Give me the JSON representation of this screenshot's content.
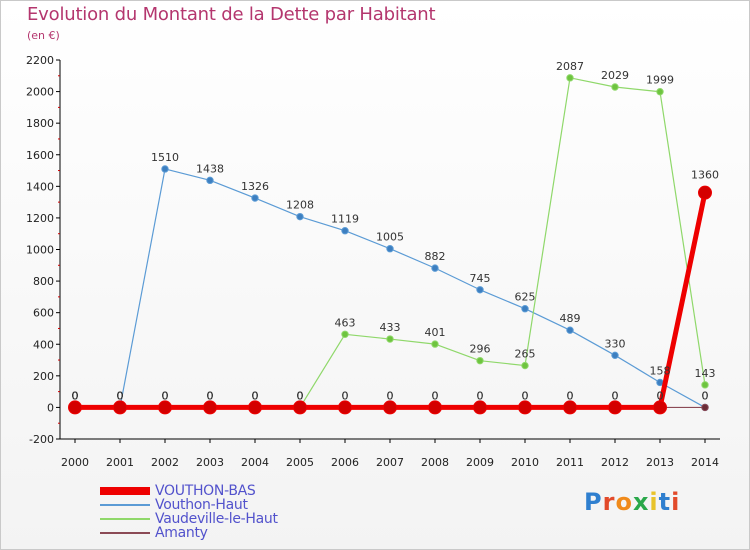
{
  "header": {
    "title": "Evolution du Montant de la Dette par Habitant",
    "subtitle": "(en €)"
  },
  "logo": {
    "text": "Proxiti",
    "letter_colors": [
      "#2f7fcf",
      "#e24a2a",
      "#f08a1a",
      "#2aa84a",
      "#e8c32a",
      "#2f7fcf",
      "#e24a2a"
    ]
  },
  "chart_data": {
    "type": "line",
    "title": "Evolution du Montant de la Dette par Habitant",
    "subtitle": "(en €)",
    "xlabel": "",
    "ylabel": "",
    "x": [
      "2000",
      "2001",
      "2002",
      "2003",
      "2004",
      "2005",
      "2006",
      "2007",
      "2008",
      "2009",
      "2010",
      "2011",
      "2012",
      "2013",
      "2014"
    ],
    "ylim": [
      -200,
      2200
    ],
    "yticks": [
      -200,
      0,
      200,
      400,
      600,
      800,
      1000,
      1200,
      1400,
      1600,
      1800,
      2000,
      2200
    ],
    "grid": false,
    "legend_position": "bottom-left",
    "series": [
      {
        "name": "Vouthon-Haut",
        "color": "#5b9bd5",
        "marker_color": "#3d7fc0",
        "values": [
          0,
          0,
          1510,
          1438,
          1326,
          1208,
          1119,
          1005,
          882,
          745,
          625,
          489,
          330,
          158,
          0
        ],
        "labels": [
          "0",
          "0",
          "1510",
          "1438",
          "1326",
          "1208",
          "1119",
          "1005",
          "882",
          "745",
          "625",
          "489",
          "330",
          "158",
          "0"
        ]
      },
      {
        "name": "Vaudeville-le-Haut",
        "color": "#8fd86a",
        "marker_color": "#6ec43f",
        "values": [
          0,
          0,
          0,
          0,
          0,
          0,
          463,
          433,
          401,
          296,
          265,
          2087,
          2029,
          1999,
          143
        ],
        "labels": [
          "0",
          "0",
          "0",
          "0",
          "0",
          "0",
          "463",
          "433",
          "401",
          "296",
          "265",
          "2087",
          "2029",
          "1999",
          "143"
        ]
      },
      {
        "name": "Amanty",
        "color": "#8b4a55",
        "marker_color": "#6a2b36",
        "values": [
          0,
          0,
          0,
          0,
          0,
          0,
          0,
          0,
          0,
          0,
          0,
          0,
          0,
          0,
          0
        ],
        "labels": [
          "0",
          "0",
          "0",
          "0",
          "0",
          "0",
          "0",
          "0",
          "0",
          "0",
          "0",
          "0",
          "0",
          "0",
          "0"
        ]
      },
      {
        "name": "VOUTHON-BAS",
        "color": "#ee0000",
        "marker_color": "#d40000",
        "values": [
          0,
          0,
          0,
          0,
          0,
          0,
          0,
          0,
          0,
          0,
          0,
          0,
          0,
          0,
          1360
        ],
        "labels": [
          "0",
          "0",
          "0",
          "0",
          "0",
          "0",
          "0",
          "0",
          "0",
          "0",
          "0",
          "0",
          "0",
          "0",
          "1360"
        ]
      }
    ],
    "legend": [
      "VOUTHON-BAS",
      "Vouthon-Haut",
      "Vaudeville-le-Haut",
      "Amanty"
    ]
  }
}
